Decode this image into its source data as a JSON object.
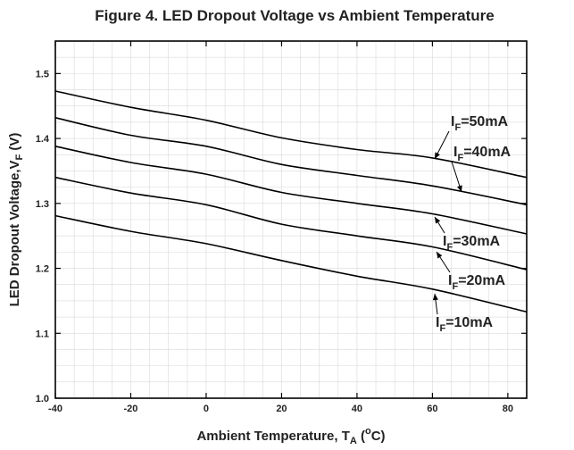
{
  "chart_data": {
    "type": "line",
    "title": "Figure 4. LED Dropout Voltage vs Ambient Temperature",
    "xlabel": {
      "main": "Ambient Temperature, T",
      "sub": "A",
      "post": " (",
      "sup": "o",
      "post2": "C)"
    },
    "ylabel": {
      "main": "LED Dropout Voltage,V",
      "sub": "F",
      "post": " (V)"
    },
    "xlim": [
      -40,
      85
    ],
    "ylim": [
      1.0,
      1.55
    ],
    "xticks": [
      -40,
      -20,
      0,
      20,
      40,
      60,
      80
    ],
    "xtick_labels": [
      "-40",
      "-20",
      "0",
      "20",
      "40",
      "60",
      "80"
    ],
    "yticks": [
      1.0,
      1.1,
      1.2,
      1.3,
      1.4,
      1.5
    ],
    "ytick_labels": [
      "1.0",
      "1.1",
      "1.2",
      "1.3",
      "1.4",
      "1.5"
    ],
    "grid": false,
    "series": [
      {
        "name": "I_F=50mA",
        "label_pre": "I",
        "label_sub": "F",
        "label_post": "=50mA",
        "x": [
          -40,
          -20,
          0,
          20,
          40,
          60,
          85
        ],
        "values": [
          1.473,
          1.448,
          1.428,
          1.401,
          1.383,
          1.37,
          1.34
        ]
      },
      {
        "name": "I_F=40mA",
        "label_pre": "I",
        "label_sub": "F",
        "label_post": "=40mA",
        "x": [
          -40,
          -20,
          0,
          20,
          40,
          60,
          85
        ],
        "values": [
          1.432,
          1.405,
          1.388,
          1.36,
          1.343,
          1.327,
          1.298
        ]
      },
      {
        "name": "I_F=30mA",
        "label_pre": "I",
        "label_sub": "F",
        "label_post": "=30mA",
        "x": [
          -40,
          -20,
          0,
          20,
          40,
          60,
          85
        ],
        "values": [
          1.388,
          1.363,
          1.345,
          1.317,
          1.3,
          1.284,
          1.253
        ]
      },
      {
        "name": "I_F=20mA",
        "label_pre": "I",
        "label_sub": "F",
        "label_post": "=20mA",
        "x": [
          -40,
          -20,
          0,
          20,
          40,
          60,
          85
        ],
        "values": [
          1.34,
          1.316,
          1.298,
          1.268,
          1.25,
          1.233,
          1.198
        ]
      },
      {
        "name": "I_F=10mA",
        "label_pre": "I",
        "label_sub": "F",
        "label_post": "=10mA",
        "x": [
          -40,
          -20,
          0,
          20,
          40,
          60,
          85
        ],
        "values": [
          1.281,
          1.257,
          1.238,
          1.212,
          1.188,
          1.168,
          1.133
        ]
      }
    ]
  }
}
